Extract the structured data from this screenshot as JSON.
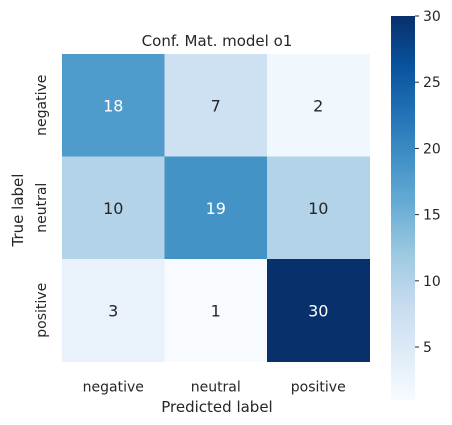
{
  "chart_data": {
    "type": "heatmap",
    "title": "Conf. Mat. model o1",
    "xlabel": "Predicted label",
    "ylabel": "True label",
    "x_categories": [
      "negative",
      "neutral",
      "positive"
    ],
    "y_categories": [
      "negative",
      "neutral",
      "positive"
    ],
    "values": [
      [
        18,
        7,
        2
      ],
      [
        10,
        19,
        10
      ],
      [
        3,
        1,
        30
      ]
    ],
    "colormap": "Blues",
    "colorbar": {
      "min": 1,
      "max": 30,
      "ticks": [
        5,
        10,
        15,
        20,
        25,
        30
      ]
    },
    "grid": false
  }
}
